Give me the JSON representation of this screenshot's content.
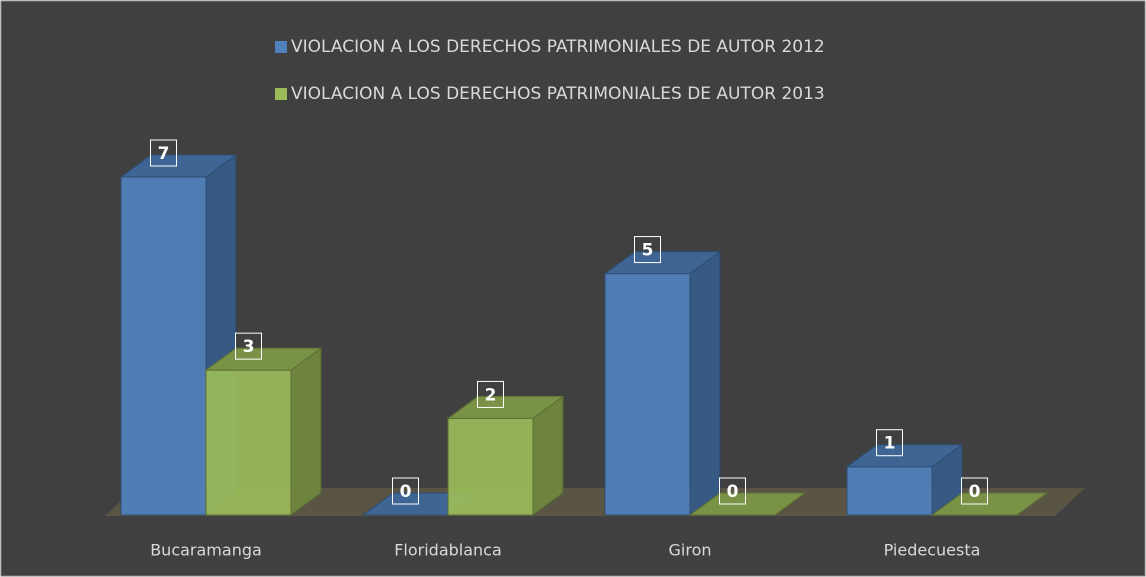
{
  "chart_data": {
    "type": "bar3d",
    "categories": [
      "Bucaramanga",
      "Floridablanca",
      "Giron",
      "Piedecuesta"
    ],
    "series": [
      {
        "name": "VIOLACION A LOS DERECHOS PATRIMONIALES DE AUTOR 2012",
        "color": "#4f81bd",
        "values": [
          7,
          0,
          5,
          1
        ]
      },
      {
        "name": "VIOLACION A LOS DERECHOS PATRIMONIALES DE AUTOR 2013",
        "color": "#9bbb59",
        "values": [
          3,
          2,
          0,
          0
        ]
      }
    ],
    "legend": "top"
  }
}
